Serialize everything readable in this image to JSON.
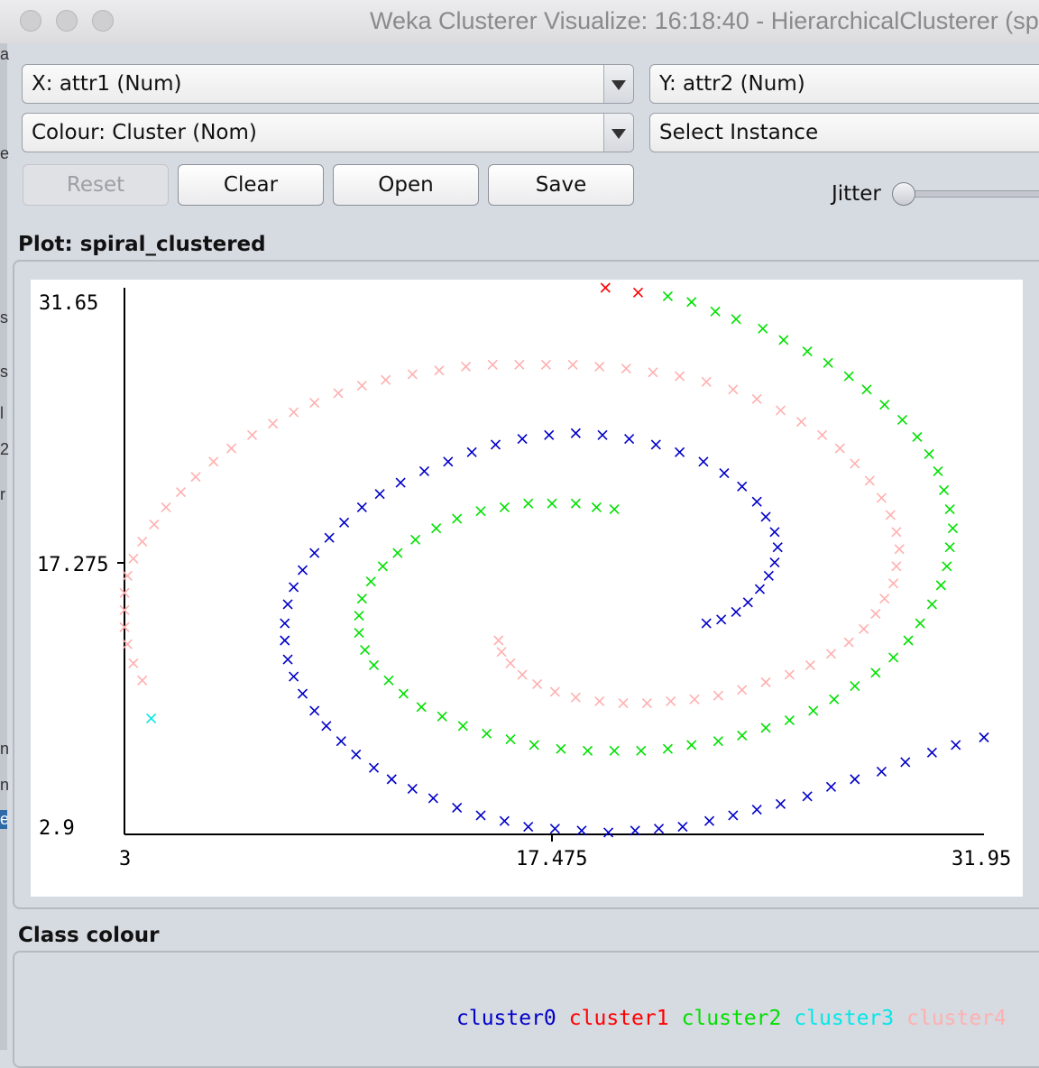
{
  "window": {
    "title": "Weka Clusterer Visualize: 16:18:40 - HierarchicalClusterer (sp"
  },
  "left_edge_glyphs": [
    "a",
    "e",
    "s",
    "s",
    "l",
    "2",
    "r",
    "n",
    "n",
    "e"
  ],
  "controls": {
    "x_axis_select": "X: attr1 (Num)",
    "y_axis_select": "Y: attr2 (Num)",
    "colour_select": "Colour: Cluster (Nom)",
    "select_instance": "Select Instance",
    "buttons": {
      "reset": "Reset",
      "clear": "Clear",
      "open": "Open",
      "save": "Save"
    },
    "jitter_label": "Jitter",
    "jitter_value": 0
  },
  "plot": {
    "label": "Plot: spiral_clustered"
  },
  "legend": {
    "label": "Class colour",
    "entries": [
      {
        "name": "cluster0",
        "color": "#0000c8"
      },
      {
        "name": "cluster1",
        "color": "#ff0000"
      },
      {
        "name": "cluster2",
        "color": "#00e000"
      },
      {
        "name": "cluster3",
        "color": "#00e8e8"
      },
      {
        "name": "cluster4",
        "color": "#ffb0b0"
      }
    ]
  },
  "chart_data": {
    "type": "scatter",
    "marker": "x",
    "xlim": [
      3,
      31.95
    ],
    "ylim": [
      2.9,
      31.65
    ],
    "x_ticks": [
      "3",
      "17.475",
      "31.95"
    ],
    "y_ticks": [
      "31.65",
      "17.275",
      "2.9"
    ],
    "series": [
      {
        "name": "cluster0",
        "color": "#0000c8",
        "points": [
          [
            31.95,
            8.0
          ],
          [
            31.0,
            7.6
          ],
          [
            30.2,
            7.2
          ],
          [
            29.3,
            6.7
          ],
          [
            28.5,
            6.2
          ],
          [
            27.6,
            5.8
          ],
          [
            26.8,
            5.4
          ],
          [
            26.0,
            4.9
          ],
          [
            25.1,
            4.5
          ],
          [
            24.3,
            4.2
          ],
          [
            23.5,
            3.9
          ],
          [
            22.7,
            3.6
          ],
          [
            21.8,
            3.3
          ],
          [
            21.0,
            3.2
          ],
          [
            20.2,
            3.1
          ],
          [
            19.3,
            3.0
          ],
          [
            18.4,
            3.1
          ],
          [
            17.5,
            3.2
          ],
          [
            16.6,
            3.3
          ],
          [
            15.8,
            3.6
          ],
          [
            15.0,
            3.9
          ],
          [
            14.2,
            4.3
          ],
          [
            13.4,
            4.8
          ],
          [
            12.7,
            5.3
          ],
          [
            12.0,
            5.8
          ],
          [
            11.4,
            6.4
          ],
          [
            10.8,
            7.1
          ],
          [
            10.3,
            7.8
          ],
          [
            9.8,
            8.6
          ],
          [
            9.4,
            9.4
          ],
          [
            9.0,
            10.3
          ],
          [
            8.7,
            11.2
          ],
          [
            8.5,
            12.1
          ],
          [
            8.4,
            13.1
          ],
          [
            8.4,
            14.0
          ],
          [
            8.5,
            15.0
          ],
          [
            8.7,
            15.9
          ],
          [
            9.0,
            16.8
          ],
          [
            9.4,
            17.7
          ],
          [
            9.9,
            18.5
          ],
          [
            10.4,
            19.3
          ],
          [
            11.0,
            20.1
          ],
          [
            11.6,
            20.8
          ],
          [
            12.3,
            21.4
          ],
          [
            13.1,
            22.0
          ],
          [
            13.9,
            22.5
          ],
          [
            14.7,
            23.0
          ],
          [
            15.5,
            23.4
          ],
          [
            16.4,
            23.7
          ],
          [
            17.3,
            23.9
          ],
          [
            18.2,
            24.0
          ],
          [
            19.1,
            23.9
          ],
          [
            20.0,
            23.7
          ],
          [
            20.9,
            23.4
          ],
          [
            21.7,
            23.0
          ],
          [
            22.5,
            22.5
          ],
          [
            23.2,
            21.9
          ],
          [
            23.8,
            21.2
          ],
          [
            24.3,
            20.4
          ],
          [
            24.6,
            19.6
          ],
          [
            24.9,
            18.8
          ],
          [
            25.0,
            18.0
          ],
          [
            24.9,
            17.2
          ],
          [
            24.7,
            16.5
          ],
          [
            24.4,
            15.8
          ],
          [
            24.0,
            15.1
          ],
          [
            23.6,
            14.6
          ],
          [
            23.1,
            14.2
          ],
          [
            22.6,
            14.0
          ]
        ]
      },
      {
        "name": "cluster1",
        "color": "#ff0000",
        "points": [
          [
            19.2,
            31.65
          ],
          [
            20.3,
            31.4
          ]
        ]
      },
      {
        "name": "cluster2",
        "color": "#00e000",
        "points": [
          [
            21.3,
            31.2
          ],
          [
            22.1,
            30.9
          ],
          [
            22.9,
            30.4
          ],
          [
            23.6,
            30.0
          ],
          [
            24.5,
            29.5
          ],
          [
            25.2,
            28.9
          ],
          [
            26.0,
            28.3
          ],
          [
            26.7,
            27.7
          ],
          [
            27.4,
            27.0
          ],
          [
            28.0,
            26.3
          ],
          [
            28.6,
            25.5
          ],
          [
            29.2,
            24.7
          ],
          [
            29.7,
            23.8
          ],
          [
            30.1,
            22.9
          ],
          [
            30.4,
            22.0
          ],
          [
            30.6,
            21.0
          ],
          [
            30.8,
            20.0
          ],
          [
            30.9,
            19.0
          ],
          [
            30.8,
            18.0
          ],
          [
            30.7,
            17.0
          ],
          [
            30.5,
            16.0
          ],
          [
            30.2,
            15.0
          ],
          [
            29.8,
            14.0
          ],
          [
            29.4,
            13.1
          ],
          [
            28.9,
            12.2
          ],
          [
            28.3,
            11.4
          ],
          [
            27.6,
            10.7
          ],
          [
            26.9,
            10.0
          ],
          [
            26.2,
            9.4
          ],
          [
            25.4,
            8.9
          ],
          [
            24.6,
            8.5
          ],
          [
            23.8,
            8.1
          ],
          [
            23.0,
            7.8
          ],
          [
            22.1,
            7.6
          ],
          [
            21.3,
            7.4
          ],
          [
            20.4,
            7.3
          ],
          [
            19.5,
            7.3
          ],
          [
            18.6,
            7.3
          ],
          [
            17.7,
            7.4
          ],
          [
            16.8,
            7.6
          ],
          [
            16.0,
            7.9
          ],
          [
            15.2,
            8.2
          ],
          [
            14.4,
            8.6
          ],
          [
            13.7,
            9.1
          ],
          [
            13.0,
            9.6
          ],
          [
            12.4,
            10.3
          ],
          [
            11.9,
            11.0
          ],
          [
            11.4,
            11.8
          ],
          [
            11.1,
            12.6
          ],
          [
            10.9,
            13.5
          ],
          [
            10.9,
            14.4
          ],
          [
            11.0,
            15.3
          ],
          [
            11.3,
            16.2
          ],
          [
            11.7,
            17.0
          ],
          [
            12.2,
            17.7
          ],
          [
            12.8,
            18.4
          ],
          [
            13.5,
            19.0
          ],
          [
            14.2,
            19.5
          ],
          [
            15.0,
            19.9
          ],
          [
            15.8,
            20.1
          ],
          [
            16.6,
            20.3
          ],
          [
            17.4,
            20.3
          ],
          [
            18.2,
            20.3
          ],
          [
            18.9,
            20.1
          ],
          [
            19.5,
            20.0
          ]
        ]
      },
      {
        "name": "cluster3",
        "color": "#00e8e8",
        "points": [
          [
            3.9,
            9.0
          ]
        ]
      },
      {
        "name": "cluster4",
        "color": "#ffb0b0",
        "points": [
          [
            15.6,
            13.1
          ],
          [
            15.7,
            12.5
          ],
          [
            16.0,
            11.9
          ],
          [
            16.4,
            11.3
          ],
          [
            16.9,
            10.8
          ],
          [
            17.5,
            10.4
          ],
          [
            18.2,
            10.1
          ],
          [
            19.0,
            9.9
          ],
          [
            19.8,
            9.8
          ],
          [
            20.6,
            9.8
          ],
          [
            21.4,
            9.9
          ],
          [
            22.2,
            10.0
          ],
          [
            23.0,
            10.2
          ],
          [
            23.8,
            10.5
          ],
          [
            24.6,
            10.9
          ],
          [
            25.4,
            11.3
          ],
          [
            26.1,
            11.8
          ],
          [
            26.8,
            12.4
          ],
          [
            27.4,
            13.0
          ],
          [
            27.9,
            13.7
          ],
          [
            28.3,
            14.5
          ],
          [
            28.6,
            15.3
          ],
          [
            28.9,
            16.1
          ],
          [
            29.0,
            17.0
          ],
          [
            29.1,
            17.9
          ],
          [
            29.0,
            18.8
          ],
          [
            28.8,
            19.7
          ],
          [
            28.5,
            20.6
          ],
          [
            28.1,
            21.5
          ],
          [
            27.6,
            22.4
          ],
          [
            27.1,
            23.2
          ],
          [
            26.5,
            23.9
          ],
          [
            25.8,
            24.6
          ],
          [
            25.1,
            25.2
          ],
          [
            24.3,
            25.8
          ],
          [
            23.5,
            26.3
          ],
          [
            22.6,
            26.7
          ],
          [
            21.7,
            27.0
          ],
          [
            20.8,
            27.2
          ],
          [
            19.9,
            27.4
          ],
          [
            19.0,
            27.5
          ],
          [
            18.1,
            27.6
          ],
          [
            17.2,
            27.6
          ],
          [
            16.3,
            27.6
          ],
          [
            15.4,
            27.6
          ],
          [
            14.5,
            27.5
          ],
          [
            13.6,
            27.3
          ],
          [
            12.7,
            27.1
          ],
          [
            11.8,
            26.8
          ],
          [
            11.0,
            26.5
          ],
          [
            10.2,
            26.1
          ],
          [
            9.4,
            25.6
          ],
          [
            8.7,
            25.1
          ],
          [
            8.0,
            24.5
          ],
          [
            7.3,
            23.9
          ],
          [
            6.6,
            23.2
          ],
          [
            6.0,
            22.5
          ],
          [
            5.4,
            21.7
          ],
          [
            4.9,
            20.9
          ],
          [
            4.4,
            20.1
          ],
          [
            4.0,
            19.2
          ],
          [
            3.6,
            18.3
          ],
          [
            3.3,
            17.4
          ],
          [
            3.1,
            16.5
          ],
          [
            3.0,
            15.6
          ],
          [
            3.0,
            14.7
          ],
          [
            3.0,
            13.8
          ],
          [
            3.1,
            12.9
          ],
          [
            3.3,
            11.9
          ],
          [
            3.6,
            11.0
          ]
        ]
      }
    ]
  }
}
